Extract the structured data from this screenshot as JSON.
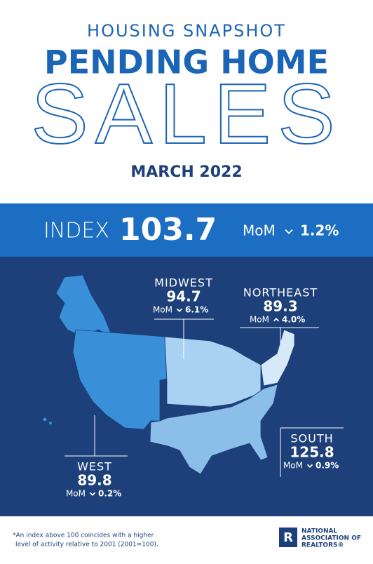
{
  "header": {
    "kicker": "HOUSING SNAPSHOT",
    "title_line1": "PENDING HOME",
    "title_line2": "SALES",
    "date": "MARCH 2022"
  },
  "index": {
    "label": "INDEX",
    "value": "103.7",
    "mom_label": "MoM",
    "mom_change": "1.2%",
    "direction": "down"
  },
  "regions": [
    {
      "name": "MIDWEST",
      "value": "94.7",
      "mom_label": "MoM",
      "mom_change": "6.1%",
      "direction": "down"
    },
    {
      "name": "NORTHEAST",
      "value": "89.3",
      "mom_label": "MoM",
      "mom_change": "4.0%",
      "direction": "up"
    },
    {
      "name": "SOUTH",
      "value": "125.8",
      "mom_label": "MoM",
      "mom_change": "0.9%",
      "direction": "down"
    },
    {
      "name": "WEST",
      "value": "89.8",
      "mom_label": "MoM",
      "mom_change": "0.2%",
      "direction": "down"
    }
  ],
  "footnote": {
    "line1": "*An index above 100 coincides with a higher",
    "line2": "level of activity relative to 2001 (2001=100)."
  },
  "logo": {
    "line1": "NATIONAL",
    "line2": "ASSOCIATION OF",
    "line3": "REALTORS®"
  }
}
